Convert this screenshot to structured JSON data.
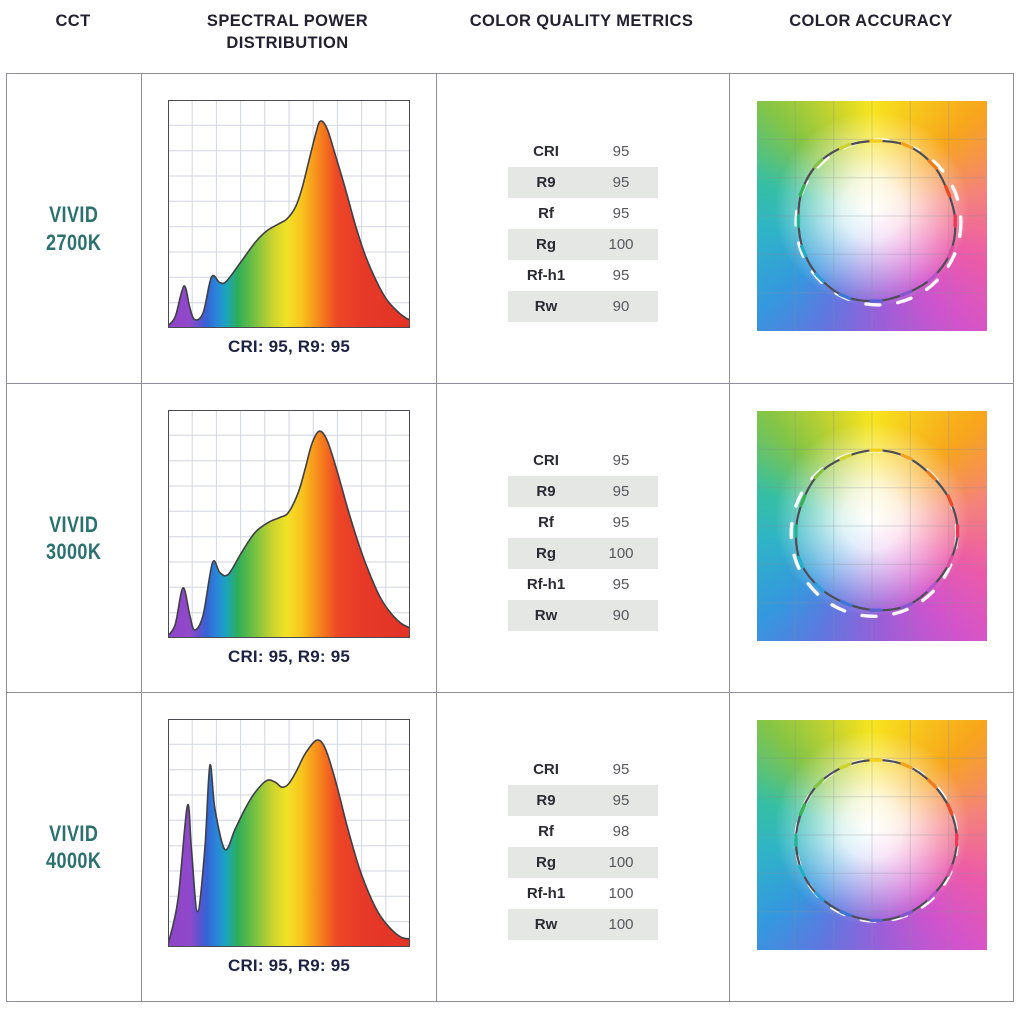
{
  "header": {
    "cct": "CCT",
    "spd": "SPECTRAL POWER DISTRIBUTION",
    "metrics": "COLOR QUALITY METRICS",
    "accuracy": "COLOR ACCURACY"
  },
  "rows": [
    {
      "cct_name": "VIVID",
      "cct_temp": "2700K",
      "caption": "CRI: 95, R9: 95",
      "metrics": [
        {
          "label": "CRI",
          "value": "95"
        },
        {
          "label": "R9",
          "value": "95"
        },
        {
          "label": "Rf",
          "value": "95"
        },
        {
          "label": "Rg",
          "value": "100"
        },
        {
          "label": "Rf-h1",
          "value": "95"
        },
        {
          "label": "Rw",
          "value": "90"
        }
      ]
    },
    {
      "cct_name": "VIVID",
      "cct_temp": "3000K",
      "caption": "CRI: 95, R9: 95",
      "metrics": [
        {
          "label": "CRI",
          "value": "95"
        },
        {
          "label": "R9",
          "value": "95"
        },
        {
          "label": "Rf",
          "value": "95"
        },
        {
          "label": "Rg",
          "value": "100"
        },
        {
          "label": "Rf-h1",
          "value": "95"
        },
        {
          "label": "Rw",
          "value": "90"
        }
      ]
    },
    {
      "cct_name": "VIVID",
      "cct_temp": "4000K",
      "caption": "CRI: 95, R9: 95",
      "metrics": [
        {
          "label": "CRI",
          "value": "95"
        },
        {
          "label": "R9",
          "value": "95"
        },
        {
          "label": "Rf",
          "value": "98"
        },
        {
          "label": "Rg",
          "value": "100"
        },
        {
          "label": "Rf-h1",
          "value": "100"
        },
        {
          "label": "Rw",
          "value": "100"
        }
      ]
    }
  ],
  "colors": {
    "accent_teal": "#2a7170",
    "caption_navy": "#1c2243",
    "header_text": "#232130",
    "table_border": "#8f8f96",
    "metrics_shaded_row": "#e5e7e4",
    "metrics_value_gray": "#57575c",
    "gamut_reference_ring": "#4d4d55",
    "gamut_test_ring": "#ffffff"
  },
  "chart_data": {
    "spd": {
      "type": "area",
      "title": "Spectral Power Distribution",
      "xlabel": "wavelength (approx 380-780 nm, axis unlabeled)",
      "ylabel": "relative spectral power (axis unlabeled)",
      "grid": {
        "cols": 10,
        "rows": 9,
        "on": true
      },
      "fill": "spectral rainbow gradient left(violet) to right(red)",
      "spectrum_stops": [
        [
          0,
          "#8e44c8"
        ],
        [
          9,
          "#9149cb"
        ],
        [
          13,
          "#5e53cf"
        ],
        [
          16,
          "#3464d4"
        ],
        [
          20,
          "#2a85da"
        ],
        [
          24,
          "#1aa5bb"
        ],
        [
          29,
          "#2fae57"
        ],
        [
          36,
          "#78c142"
        ],
        [
          43,
          "#c8d32f"
        ],
        [
          49,
          "#f2e226"
        ],
        [
          55,
          "#f8c61e"
        ],
        [
          60,
          "#f79b1c"
        ],
        [
          65,
          "#f4701f"
        ],
        [
          70,
          "#ec4726"
        ],
        [
          80,
          "#e73a28"
        ],
        [
          100,
          "#e23326"
        ]
      ],
      "series": [
        {
          "name": "VIVID 2700K",
          "points": [
            [
              0,
              1
            ],
            [
              3,
              5
            ],
            [
              6.6,
              18.4
            ],
            [
              9,
              9
            ],
            [
              11,
              3.7
            ],
            [
              14.5,
              6.6
            ],
            [
              18,
              22.4
            ],
            [
              21.4,
              19.9
            ],
            [
              24.2,
              20.6
            ],
            [
              30.4,
              29.4
            ],
            [
              36,
              37.5
            ],
            [
              40.8,
              42.6
            ],
            [
              45.6,
              45.6
            ],
            [
              49.1,
              47.8
            ],
            [
              52.6,
              52.9
            ],
            [
              55.3,
              61
            ],
            [
              58.1,
              72.8
            ],
            [
              60.9,
              84.6
            ],
            [
              62.9,
              90.7
            ],
            [
              65.7,
              87.5
            ],
            [
              69.2,
              75.7
            ],
            [
              73.3,
              61
            ],
            [
              77.5,
              44.9
            ],
            [
              81.6,
              31.6
            ],
            [
              85.8,
              21.3
            ],
            [
              89.9,
              13.2
            ],
            [
              94,
              8.1
            ],
            [
              98.2,
              4.4
            ],
            [
              100,
              3.7
            ]
          ]
        },
        {
          "name": "VIVID 3000K",
          "points": [
            [
              0,
              1
            ],
            [
              3,
              6
            ],
            [
              6.2,
              22
            ],
            [
              9,
              10
            ],
            [
              11,
              3.5
            ],
            [
              14.5,
              10
            ],
            [
              18.4,
              33
            ],
            [
              21.4,
              28.7
            ],
            [
              24.9,
              27.9
            ],
            [
              30.4,
              37.5
            ],
            [
              36,
              46.3
            ],
            [
              41.5,
              50.7
            ],
            [
              46.3,
              52.9
            ],
            [
              49.8,
              55.1
            ],
            [
              53.9,
              64
            ],
            [
              56.7,
              74.3
            ],
            [
              59.5,
              85.3
            ],
            [
              62.5,
              90.7
            ],
            [
              65.7,
              86.8
            ],
            [
              69.8,
              73.5
            ],
            [
              74.7,
              55.1
            ],
            [
              79.5,
              39
            ],
            [
              83.7,
              27.2
            ],
            [
              87.8,
              17.6
            ],
            [
              92,
              11
            ],
            [
              96.1,
              6.6
            ],
            [
              100,
              4.4
            ]
          ]
        },
        {
          "name": "VIVID 4000K",
          "points": [
            [
              0,
              1
            ],
            [
              4.1,
              20.6
            ],
            [
              8,
              61.9
            ],
            [
              9.7,
              42.8
            ],
            [
              12.2,
              15.5
            ],
            [
              15.2,
              42.8
            ],
            [
              17.3,
              79.6
            ],
            [
              19.4,
              60.5
            ],
            [
              23.5,
              42.8
            ],
            [
              27.7,
              51.6
            ],
            [
              31.8,
              60.5
            ],
            [
              36,
              67.8
            ],
            [
              40.8,
              73
            ],
            [
              44.3,
              72.3
            ],
            [
              47,
              70.1
            ],
            [
              49.8,
              71.5
            ],
            [
              53.2,
              77.4
            ],
            [
              56.7,
              84.8
            ],
            [
              61.5,
              90.7
            ],
            [
              65,
              87
            ],
            [
              69.2,
              73
            ],
            [
              74,
              53.1
            ],
            [
              78.8,
              35.4
            ],
            [
              83,
              23.6
            ],
            [
              87.1,
              14.7
            ],
            [
              91.3,
              8.8
            ],
            [
              96.1,
              4.4
            ],
            [
              100,
              3.5
            ]
          ]
        }
      ]
    },
    "gamut": {
      "type": "scatter",
      "title": "Color Accuracy (TM-30 style color vector graphic)",
      "description": "dark reference circle vs white dashed test-source gamut over a hue wheel with 16 hue-bin ticks; near-perfect overlap indicates high fidelity",
      "grid": 6,
      "center": [
        119,
        120
      ],
      "radius": 80,
      "tick_colors": [
        "#f2cf1c",
        "#f4a21c",
        "#ee7c1f",
        "#e84b25",
        "#e63a55",
        "#d84f9f",
        "#b455c9",
        "#8457ce",
        "#5a62d4",
        "#3c77d8",
        "#2f9bd9",
        "#23adc2",
        "#27b394",
        "#3cb058",
        "#84c243",
        "#cdd32e"
      ],
      "rings": [
        {
          "name": "VIVID 2700K",
          "wobble": [
            1.0,
            1.02,
            1.0,
            0.97,
            0.99,
            1.01,
            1.0,
            0.98,
            1.0,
            1.02,
            1.0,
            0.98,
            0.97,
            1.0,
            1.02,
            1.01
          ],
          "test": {
            "dx": 2.5,
            "dy": 1.5,
            "scale": 1.03
          }
        },
        {
          "name": "VIVID 3000K",
          "wobble": [
            1.01,
            1.0,
            0.98,
            1.0,
            1.02,
            1.0,
            0.99,
            1.01,
            0.99,
            0.98,
            1.0,
            1.02,
            1.0,
            0.99,
            1.01,
            1.0
          ],
          "test": {
            "dx": -2,
            "dy": 2.5,
            "scale": 1.035
          }
        },
        {
          "name": "VIVID 4000K",
          "wobble": [
            1.0,
            1.005,
            0.995,
            1.0,
            1.01,
            1.0,
            0.99,
            1.0,
            1.005,
            0.995,
            1.0,
            1.005,
            1.0,
            0.995,
            1.005,
            1.0
          ],
          "test": {
            "dx": 0.5,
            "dy": 0.5,
            "scale": 1.008
          }
        }
      ]
    }
  }
}
